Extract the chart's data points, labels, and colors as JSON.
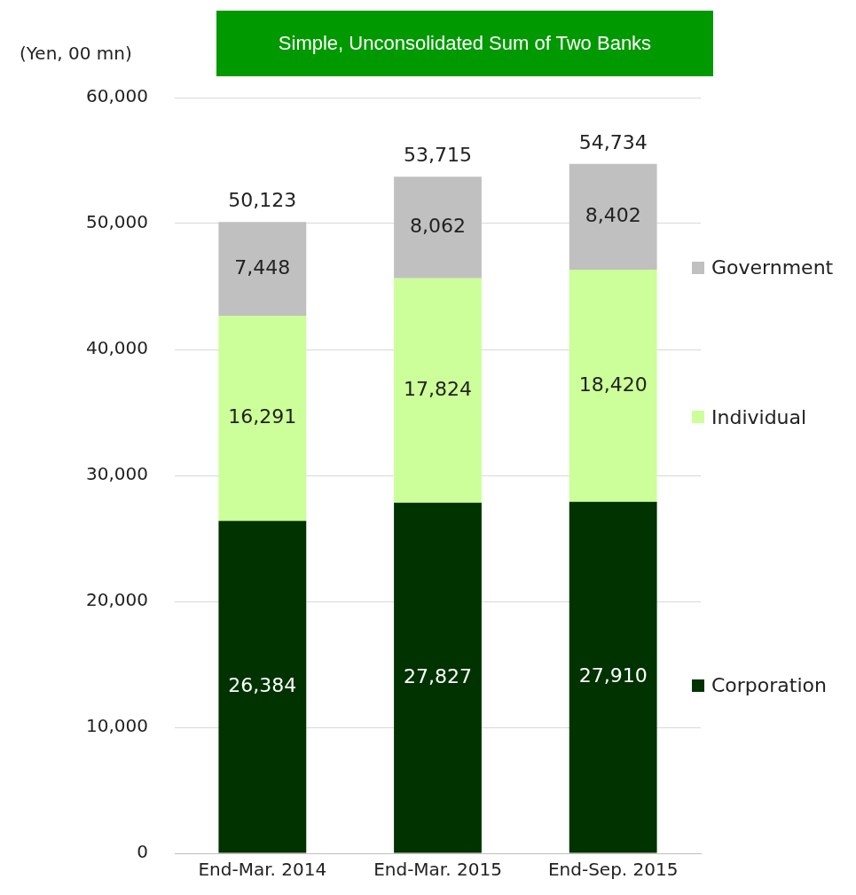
{
  "chart_data": {
    "type": "bar",
    "title": "Simple, Unconsolidated Sum of Two Banks",
    "ylabel": "(Yen, 00 mn)",
    "categories": [
      "End-Mar. 2014",
      "End-Mar. 2015",
      "End-Sep. 2015"
    ],
    "stacked": true,
    "series": [
      {
        "name": "Corporation",
        "color": "#003300",
        "values": [
          26384,
          27827,
          27910
        ],
        "value_labels": [
          "26,384",
          "27,827",
          "27,910"
        ]
      },
      {
        "name": "Individual",
        "color": "#ccff99",
        "values": [
          16291,
          17824,
          18420
        ],
        "value_labels": [
          "16,291",
          "17,824",
          "18,420"
        ]
      },
      {
        "name": "Government",
        "color": "#c0c0c0",
        "values": [
          7448,
          8062,
          8402
        ],
        "value_labels": [
          "7,448",
          "8,062",
          "8,402"
        ]
      }
    ],
    "ylim": [
      0,
      60000
    ],
    "yticks": [
      {
        "value": 0,
        "label": "0"
      },
      {
        "value": 10000,
        "label": "10,000"
      },
      {
        "value": 20000,
        "label": "20,000"
      },
      {
        "value": 30000,
        "label": "30,000"
      },
      {
        "value": 40000,
        "label": "40,000"
      },
      {
        "value": 50000,
        "label": "50,000"
      },
      {
        "value": 60000,
        "label": "60,000"
      }
    ],
    "grid": "y",
    "legend": "right",
    "totals": [
      "50,123",
      "53,715",
      "54,734"
    ]
  }
}
